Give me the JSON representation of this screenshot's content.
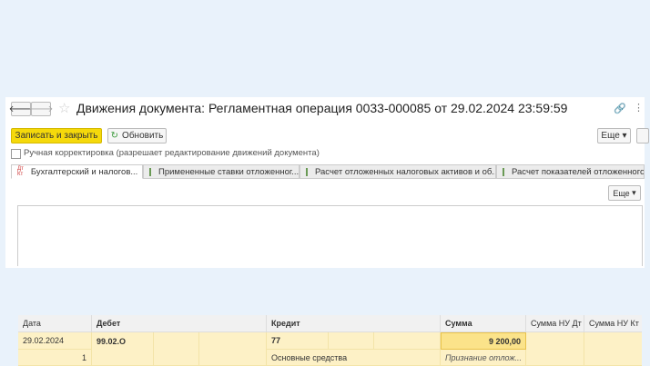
{
  "title": "Движения документа: Регламентная операция 0033-000085 от 29.02.2024 23:59:59",
  "toolbar": {
    "save_close": "Записать и закрыть",
    "refresh": "Обновить",
    "more": "Еще"
  },
  "manual_checkbox": {
    "label": "Ручная корректировка (разрешает редактирование движений документа)",
    "checked": false
  },
  "tabs": [
    {
      "label": "Бухгалтерский и налогов...",
      "active": true
    },
    {
      "label": "Примененные ставки отложенног..."
    },
    {
      "label": "Расчет отложенных налоговых активов и об..."
    },
    {
      "label": "Расчет показателей отложенного..."
    }
  ],
  "table": {
    "more": "Еще",
    "columns": [
      "Дата",
      "Дебет",
      "Кредит",
      "Сумма",
      "Сумма НУ Дт",
      "Сумма НУ Кт"
    ],
    "rows": [
      {
        "date": "29.02.2024",
        "num": "1",
        "debit": "99.02.О",
        "credit": "77",
        "credit_sub": "Основные средства",
        "sum": "9 200,00",
        "content": "Признание отлож..."
      }
    ]
  },
  "colors": {
    "accent": "#f5d90b",
    "row": "#fdf1c6",
    "background": "#e9f2fb"
  }
}
